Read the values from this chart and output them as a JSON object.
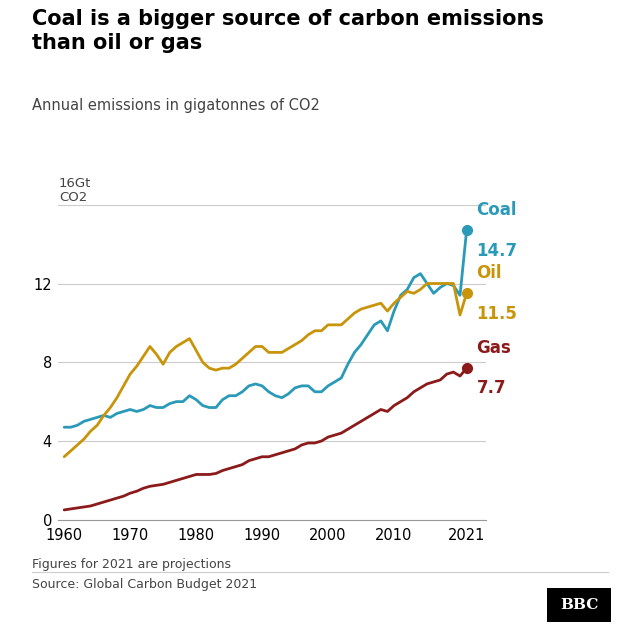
{
  "title_line1": "Coal is a bigger source of carbon emissions",
  "title_line2": "than oil or gas",
  "subtitle": "Annual emissions in gigatonnes of CO2",
  "footer_note": "Figures for 2021 are projections",
  "source": "Source: Global Carbon Budget 2021",
  "bbc_logo": "BBC",
  "background_color": "#ffffff",
  "coal_color": "#2a9ab8",
  "oil_color": "#c8940a",
  "gas_color": "#8b1a1a",
  "title_color": "#000000",
  "ylim": [
    0,
    16
  ],
  "xlim": [
    1959,
    2024
  ],
  "yticks": [
    0,
    4,
    8,
    12,
    16
  ],
  "xticks": [
    1960,
    1970,
    1980,
    1990,
    2000,
    2010,
    2021
  ],
  "coal_final": 14.7,
  "oil_final": 11.5,
  "gas_final": 7.7,
  "coal_data": {
    "years": [
      1960,
      1961,
      1962,
      1963,
      1964,
      1965,
      1966,
      1967,
      1968,
      1969,
      1970,
      1971,
      1972,
      1973,
      1974,
      1975,
      1976,
      1977,
      1978,
      1979,
      1980,
      1981,
      1982,
      1983,
      1984,
      1985,
      1986,
      1987,
      1988,
      1989,
      1990,
      1991,
      1992,
      1993,
      1994,
      1995,
      1996,
      1997,
      1998,
      1999,
      2000,
      2001,
      2002,
      2003,
      2004,
      2005,
      2006,
      2007,
      2008,
      2009,
      2010,
      2011,
      2012,
      2013,
      2014,
      2015,
      2016,
      2017,
      2018,
      2019,
      2020,
      2021
    ],
    "values": [
      4.7,
      4.7,
      4.8,
      5.0,
      5.1,
      5.2,
      5.3,
      5.2,
      5.4,
      5.5,
      5.6,
      5.5,
      5.6,
      5.8,
      5.7,
      5.7,
      5.9,
      6.0,
      6.0,
      6.3,
      6.1,
      5.8,
      5.7,
      5.7,
      6.1,
      6.3,
      6.3,
      6.5,
      6.8,
      6.9,
      6.8,
      6.5,
      6.3,
      6.2,
      6.4,
      6.7,
      6.8,
      6.8,
      6.5,
      6.5,
      6.8,
      7.0,
      7.2,
      7.9,
      8.5,
      8.9,
      9.4,
      9.9,
      10.1,
      9.6,
      10.6,
      11.4,
      11.7,
      12.3,
      12.5,
      12.0,
      11.5,
      11.8,
      12.0,
      11.9,
      11.4,
      14.7
    ]
  },
  "oil_data": {
    "years": [
      1960,
      1961,
      1962,
      1963,
      1964,
      1965,
      1966,
      1967,
      1968,
      1969,
      1970,
      1971,
      1972,
      1973,
      1974,
      1975,
      1976,
      1977,
      1978,
      1979,
      1980,
      1981,
      1982,
      1983,
      1984,
      1985,
      1986,
      1987,
      1988,
      1989,
      1990,
      1991,
      1992,
      1993,
      1994,
      1995,
      1996,
      1997,
      1998,
      1999,
      2000,
      2001,
      2002,
      2003,
      2004,
      2005,
      2006,
      2007,
      2008,
      2009,
      2010,
      2011,
      2012,
      2013,
      2014,
      2015,
      2016,
      2017,
      2018,
      2019,
      2020,
      2021
    ],
    "values": [
      3.2,
      3.5,
      3.8,
      4.1,
      4.5,
      4.8,
      5.3,
      5.7,
      6.2,
      6.8,
      7.4,
      7.8,
      8.3,
      8.8,
      8.4,
      7.9,
      8.5,
      8.8,
      9.0,
      9.2,
      8.6,
      8.0,
      7.7,
      7.6,
      7.7,
      7.7,
      7.9,
      8.2,
      8.5,
      8.8,
      8.8,
      8.5,
      8.5,
      8.5,
      8.7,
      8.9,
      9.1,
      9.4,
      9.6,
      9.6,
      9.9,
      9.9,
      9.9,
      10.2,
      10.5,
      10.7,
      10.8,
      10.9,
      11.0,
      10.6,
      11.0,
      11.3,
      11.6,
      11.5,
      11.7,
      12.0,
      12.0,
      12.0,
      12.0,
      12.0,
      10.4,
      11.5
    ]
  },
  "gas_data": {
    "years": [
      1960,
      1961,
      1962,
      1963,
      1964,
      1965,
      1966,
      1967,
      1968,
      1969,
      1970,
      1971,
      1972,
      1973,
      1974,
      1975,
      1976,
      1977,
      1978,
      1979,
      1980,
      1981,
      1982,
      1983,
      1984,
      1985,
      1986,
      1987,
      1988,
      1989,
      1990,
      1991,
      1992,
      1993,
      1994,
      1995,
      1996,
      1997,
      1998,
      1999,
      2000,
      2001,
      2002,
      2003,
      2004,
      2005,
      2006,
      2007,
      2008,
      2009,
      2010,
      2011,
      2012,
      2013,
      2014,
      2015,
      2016,
      2017,
      2018,
      2019,
      2020,
      2021
    ],
    "values": [
      0.5,
      0.55,
      0.6,
      0.65,
      0.7,
      0.8,
      0.9,
      1.0,
      1.1,
      1.2,
      1.35,
      1.45,
      1.6,
      1.7,
      1.75,
      1.8,
      1.9,
      2.0,
      2.1,
      2.2,
      2.3,
      2.3,
      2.3,
      2.35,
      2.5,
      2.6,
      2.7,
      2.8,
      3.0,
      3.1,
      3.2,
      3.2,
      3.3,
      3.4,
      3.5,
      3.6,
      3.8,
      3.9,
      3.9,
      4.0,
      4.2,
      4.3,
      4.4,
      4.6,
      4.8,
      5.0,
      5.2,
      5.4,
      5.6,
      5.5,
      5.8,
      6.0,
      6.2,
      6.5,
      6.7,
      6.9,
      7.0,
      7.1,
      7.4,
      7.5,
      7.3,
      7.7
    ]
  }
}
